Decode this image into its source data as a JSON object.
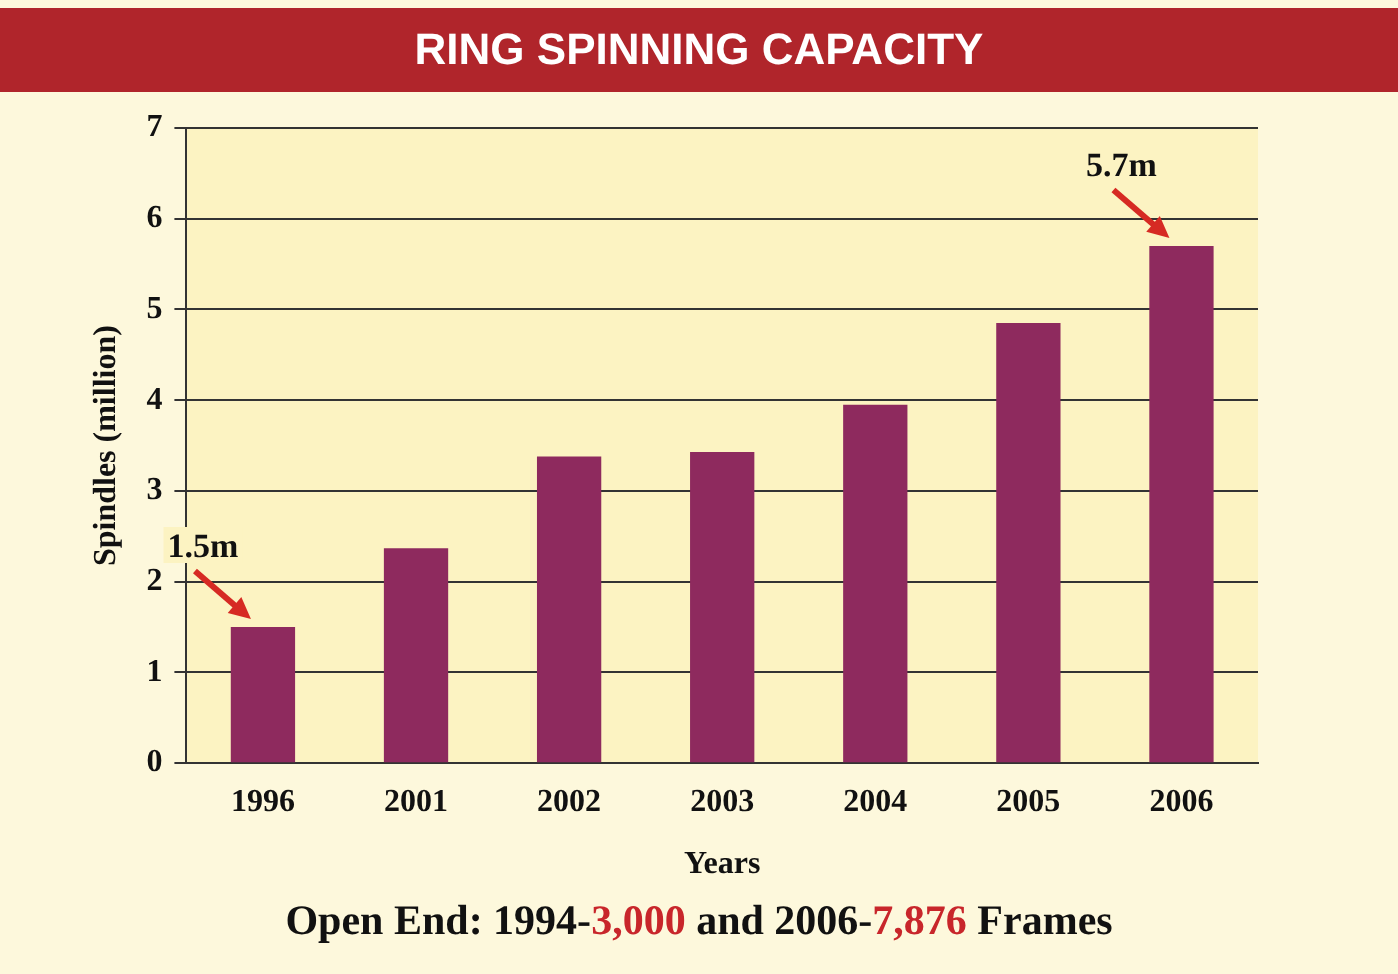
{
  "chart_data": {
    "type": "bar",
    "title": "RING SPINNING CAPACITY",
    "xlabel": "Years",
    "ylabel": "Spindles (million)",
    "categories": [
      "1996",
      "2001",
      "2002",
      "2003",
      "2004",
      "2005",
      "2006"
    ],
    "values": [
      1.5,
      2.37,
      3.38,
      3.43,
      3.95,
      4.85,
      5.7
    ],
    "color": "#8e2a5e",
    "ylim": [
      0,
      7
    ],
    "yticks": [
      0,
      1,
      2,
      3,
      4,
      5,
      6,
      7
    ],
    "grid": "y",
    "annotations": [
      {
        "text": "1.5m",
        "x": "1996",
        "y": 1.5
      },
      {
        "text": "5.7m",
        "x": "2006",
        "y": 5.7
      },
      "Open End: 1994-3,000 and 2006-7,876 Frames"
    ]
  }
}
